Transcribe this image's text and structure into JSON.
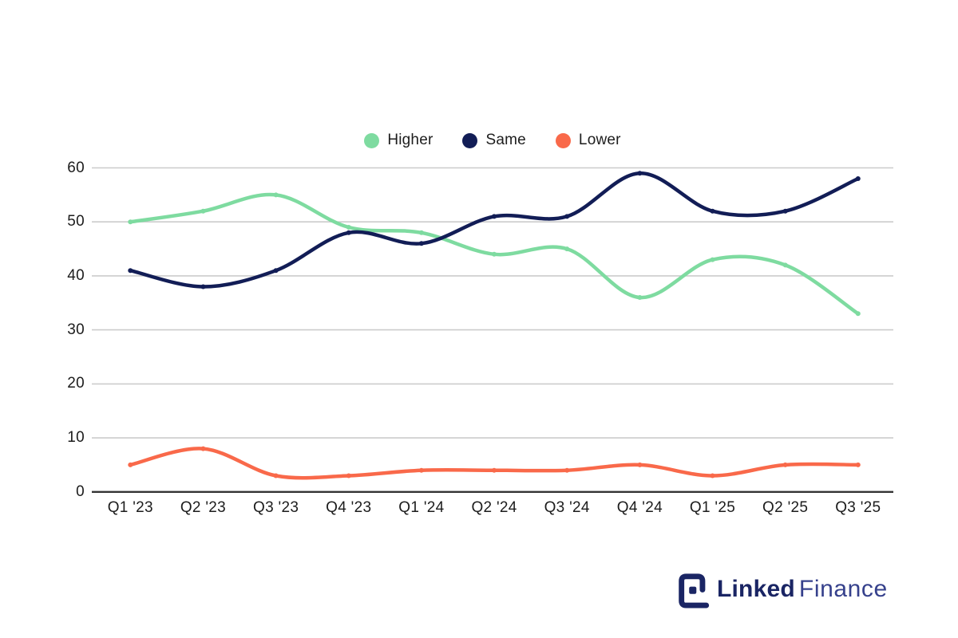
{
  "chart_data": {
    "type": "line",
    "curve": "smooth",
    "title": "",
    "xlabel": "",
    "ylabel": "",
    "categories": [
      "Q1 '23",
      "Q2 '23",
      "Q3 '23",
      "Q4 '23",
      "Q1 '24",
      "Q2 '24",
      "Q3 '24",
      "Q4 '24",
      "Q1 '25",
      "Q2 '25",
      "Q3 '25"
    ],
    "series": [
      {
        "name": "Higher",
        "color": "#7edba0",
        "values": [
          50,
          52,
          55,
          49,
          48,
          44,
          45,
          36,
          43,
          42,
          33
        ]
      },
      {
        "name": "Same",
        "color": "#121d56",
        "values": [
          41,
          38,
          41,
          48,
          46,
          51,
          51,
          59,
          52,
          52,
          58
        ]
      },
      {
        "name": "Lower",
        "color": "#f9694a",
        "values": [
          5,
          8,
          3,
          3,
          4,
          4,
          4,
          5,
          3,
          5,
          5
        ]
      }
    ],
    "ylim": [
      0,
      60
    ],
    "yticks": [
      0,
      10,
      20,
      30,
      40,
      50,
      60
    ],
    "grid": true,
    "legend_position": "top-center",
    "point_markers": true
  },
  "colors": {
    "background": "#ffffff",
    "gridline": "#cccccc",
    "axis_line": "#333333",
    "tick_text": "#1c1c1c"
  },
  "branding": {
    "icon": "linkedfinance-square-bracket-icon",
    "logo_bold": "Linked",
    "logo_light": "Finance",
    "logo_bold_color": "#1a2564",
    "logo_light_color": "#36418c"
  }
}
